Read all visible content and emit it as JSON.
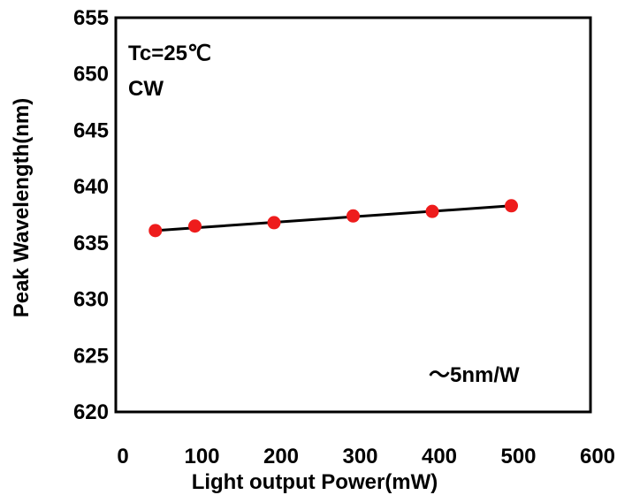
{
  "chart_data": {
    "type": "scatter",
    "xlabel": "Light output Power(mW)",
    "ylabel": "Peak Wavelength(nm)",
    "xlim": [
      0,
      600
    ],
    "ylim": [
      620,
      655
    ],
    "x_ticks": [
      "0",
      "100",
      "200",
      "300",
      "400",
      "500",
      "600"
    ],
    "y_ticks": [
      "620",
      "625",
      "630",
      "635",
      "640",
      "645",
      "650",
      "655"
    ],
    "annotations": [
      "Tc=25℃",
      "CW",
      "～5nm/W"
    ],
    "grid": false,
    "series": [
      {
        "x": [
          50,
          100,
          200,
          300,
          400,
          500
        ],
        "y": [
          636.1,
          636.5,
          636.8,
          637.4,
          637.8,
          638.3
        ],
        "color": "#ee1c1c"
      }
    ],
    "trendline": {
      "x": [
        50,
        500
      ],
      "y": [
        636.1,
        638.3
      ],
      "color": "#000000"
    }
  }
}
